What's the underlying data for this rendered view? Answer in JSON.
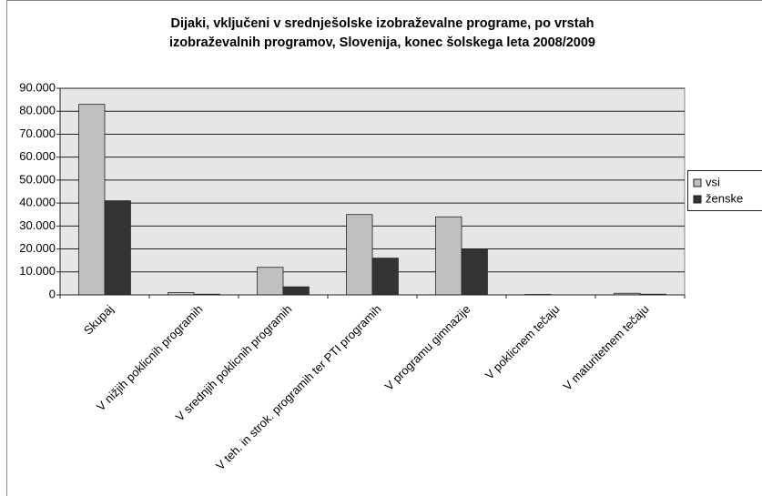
{
  "chart_data": {
    "type": "bar",
    "title": [
      "Dijaki, vključeni v srednješolske izobraževalne programe, po vrstah",
      "izobraževalnih programov, Slovenija, konec šolskega leta 2008/2009"
    ],
    "categories": [
      "Skupaj",
      "V nižjih poklicnih programih",
      "V srednjih poklicnih programih",
      "V teh. in strok. programih ter PTI programih",
      "V programu gimnazije",
      "V poklicnem tečaju",
      "V maturitetnem tečaju"
    ],
    "series": [
      {
        "name": "vsi",
        "color": "#c0c0c0",
        "values": [
          83000,
          1000,
          12000,
          35000,
          34000,
          200,
          700
        ]
      },
      {
        "name": "ženske",
        "color": "#333333",
        "values": [
          41000,
          300,
          3500,
          16000,
          20000,
          0,
          300
        ]
      }
    ],
    "ylim": [
      0,
      90000
    ],
    "yticks": [
      0,
      {
        "value": 10000,
        "label": "10.000"
      },
      {
        "value": 20000,
        "label": "20.000"
      },
      {
        "value": 30000,
        "label": "30.000"
      },
      {
        "value": 40000,
        "label": "40.000"
      },
      {
        "value": 50000,
        "label": "50.000"
      },
      {
        "value": 60000,
        "label": "60.000"
      },
      {
        "value": 70000,
        "label": "70.000"
      },
      {
        "value": 80000,
        "label": "80.000"
      },
      {
        "value": 90000,
        "label": "90.000"
      }
    ],
    "grid": true,
    "legend": "right"
  }
}
